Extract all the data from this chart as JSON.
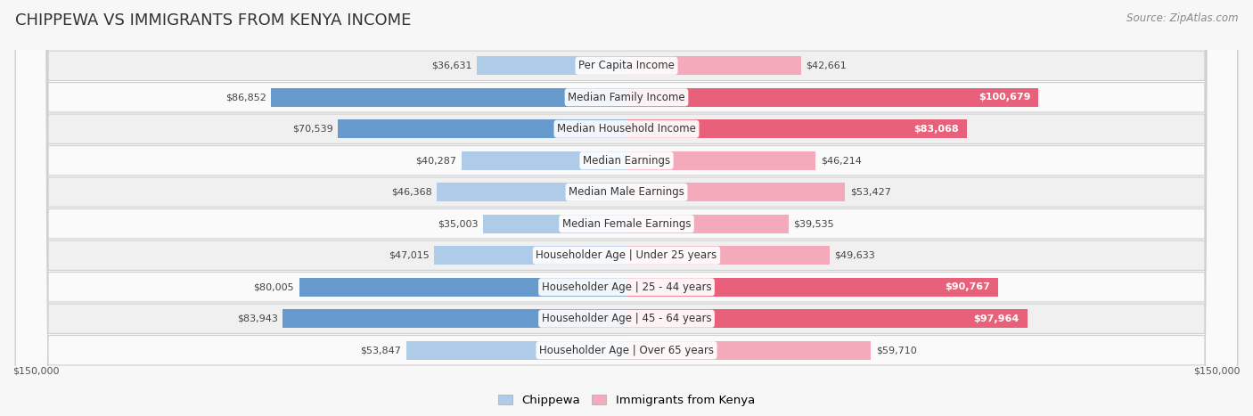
{
  "title": "CHIPPEWA VS IMMIGRANTS FROM KENYA INCOME",
  "source": "Source: ZipAtlas.com",
  "categories": [
    "Per Capita Income",
    "Median Family Income",
    "Median Household Income",
    "Median Earnings",
    "Median Male Earnings",
    "Median Female Earnings",
    "Householder Age | Under 25 years",
    "Householder Age | 25 - 44 years",
    "Householder Age | 45 - 64 years",
    "Householder Age | Over 65 years"
  ],
  "chippewa_values": [
    36631,
    86852,
    70539,
    40287,
    46368,
    35003,
    47015,
    80005,
    83943,
    53847
  ],
  "kenya_values": [
    42661,
    100679,
    83068,
    46214,
    53427,
    39535,
    49633,
    90767,
    97964,
    59710
  ],
  "chippewa_color_light": "#AECBE8",
  "chippewa_color_dark": "#6699CC",
  "kenya_color_light": "#F4AABB",
  "kenya_color_dark": "#E8607A",
  "max_value": 150000,
  "bg_color": "#f7f7f7",
  "row_color_odd": "#f0f0f0",
  "row_color_even": "#fafafa",
  "title_fontsize": 13,
  "label_fontsize": 8.5,
  "value_fontsize": 8,
  "legend_fontsize": 9.5,
  "source_fontsize": 8.5,
  "large_threshold": 75000,
  "large_chippewa": [
    86852,
    70539,
    80005,
    83943
  ],
  "large_kenya": [
    100679,
    83068,
    90767,
    97964
  ]
}
